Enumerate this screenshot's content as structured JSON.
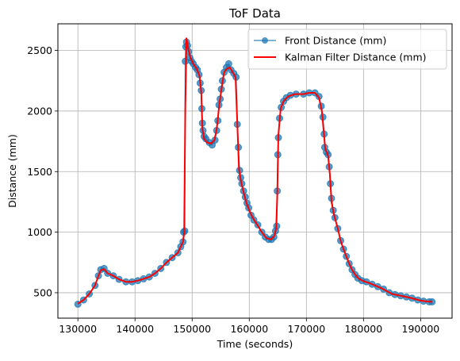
{
  "chart_data": {
    "type": "line",
    "title": "ToF Data",
    "xlabel": "Time (seconds)",
    "ylabel": "Distance (mm)",
    "xlim": [
      126500,
      195500
    ],
    "ylim": [
      290,
      2720
    ],
    "x_ticks": [
      130000,
      140000,
      150000,
      160000,
      170000,
      180000,
      190000
    ],
    "y_ticks": [
      500,
      1000,
      1500,
      2000,
      2500
    ],
    "grid": true,
    "legend_position": "top-right",
    "series": [
      {
        "name": "Front Distance (mm)",
        "style": "line-with-markers",
        "color": "#1f77b4",
        "points": [
          [
            130000,
            405
          ],
          [
            131000,
            440
          ],
          [
            132000,
            490
          ],
          [
            133000,
            560
          ],
          [
            133600,
            640
          ],
          [
            134000,
            690
          ],
          [
            134600,
            700
          ],
          [
            135200,
            660
          ],
          [
            136200,
            640
          ],
          [
            137200,
            610
          ],
          [
            138400,
            590
          ],
          [
            139500,
            590
          ],
          [
            140500,
            600
          ],
          [
            141500,
            615
          ],
          [
            142500,
            630
          ],
          [
            143500,
            660
          ],
          [
            144500,
            700
          ],
          [
            145500,
            750
          ],
          [
            146500,
            790
          ],
          [
            147500,
            830
          ],
          [
            148000,
            880
          ],
          [
            148400,
            920
          ],
          [
            148500,
            1000
          ],
          [
            148700,
            1010
          ],
          [
            148800,
            2410
          ],
          [
            148900,
            2530
          ],
          [
            149000,
            2570
          ],
          [
            149200,
            2540
          ],
          [
            149400,
            2490
          ],
          [
            149600,
            2440
          ],
          [
            149900,
            2410
          ],
          [
            150200,
            2390
          ],
          [
            150600,
            2360
          ],
          [
            150900,
            2340
          ],
          [
            151200,
            2300
          ],
          [
            151400,
            2230
          ],
          [
            151600,
            2170
          ],
          [
            151700,
            2020
          ],
          [
            151800,
            1900
          ],
          [
            151900,
            1840
          ],
          [
            152100,
            1790
          ],
          [
            152400,
            1770
          ],
          [
            153000,
            1740
          ],
          [
            153500,
            1720
          ],
          [
            154000,
            1760
          ],
          [
            154300,
            1840
          ],
          [
            154500,
            1920
          ],
          [
            154700,
            2050
          ],
          [
            154900,
            2100
          ],
          [
            155100,
            2180
          ],
          [
            155300,
            2250
          ],
          [
            155600,
            2320
          ],
          [
            156000,
            2360
          ],
          [
            156400,
            2390
          ],
          [
            156800,
            2340
          ],
          [
            157300,
            2310
          ],
          [
            157700,
            2280
          ],
          [
            157900,
            1890
          ],
          [
            158100,
            1700
          ],
          [
            158300,
            1510
          ],
          [
            158500,
            1450
          ],
          [
            158700,
            1400
          ],
          [
            159000,
            1340
          ],
          [
            159300,
            1290
          ],
          [
            159600,
            1240
          ],
          [
            159900,
            1200
          ],
          [
            160300,
            1140
          ],
          [
            160800,
            1100
          ],
          [
            161500,
            1060
          ],
          [
            162200,
            1000
          ],
          [
            162800,
            960
          ],
          [
            163400,
            940
          ],
          [
            163900,
            940
          ],
          [
            164300,
            960
          ],
          [
            164600,
            1010
          ],
          [
            164800,
            1050
          ],
          [
            164900,
            1340
          ],
          [
            165000,
            1640
          ],
          [
            165100,
            1780
          ],
          [
            165300,
            1940
          ],
          [
            165600,
            2030
          ],
          [
            166000,
            2080
          ],
          [
            166500,
            2110
          ],
          [
            167200,
            2130
          ],
          [
            168200,
            2140
          ],
          [
            169500,
            2140
          ],
          [
            170500,
            2150
          ],
          [
            171500,
            2150
          ],
          [
            172200,
            2120
          ],
          [
            172600,
            2040
          ],
          [
            172900,
            1950
          ],
          [
            173100,
            1810
          ],
          [
            173200,
            1700
          ],
          [
            173500,
            1660
          ],
          [
            173800,
            1640
          ],
          [
            174000,
            1540
          ],
          [
            174200,
            1400
          ],
          [
            174400,
            1280
          ],
          [
            174700,
            1180
          ],
          [
            175000,
            1120
          ],
          [
            175500,
            1030
          ],
          [
            176000,
            930
          ],
          [
            176500,
            860
          ],
          [
            177000,
            800
          ],
          [
            177500,
            740
          ],
          [
            178000,
            690
          ],
          [
            178500,
            650
          ],
          [
            179000,
            620
          ],
          [
            179700,
            600
          ],
          [
            180500,
            590
          ],
          [
            181500,
            570
          ],
          [
            182500,
            550
          ],
          [
            183500,
            530
          ],
          [
            184500,
            500
          ],
          [
            185500,
            485
          ],
          [
            186500,
            475
          ],
          [
            187500,
            465
          ],
          [
            188500,
            455
          ],
          [
            189500,
            440
          ],
          [
            190500,
            430
          ],
          [
            191500,
            425
          ],
          [
            192000,
            425
          ]
        ]
      },
      {
        "name": "Kalman Filter Distance (mm)",
        "style": "line",
        "color": "#ff0000",
        "points": [
          [
            130000,
            410
          ],
          [
            131000,
            440
          ],
          [
            132000,
            490
          ],
          [
            133000,
            560
          ],
          [
            133600,
            640
          ],
          [
            134000,
            685
          ],
          [
            134600,
            695
          ],
          [
            135200,
            660
          ],
          [
            136200,
            640
          ],
          [
            137200,
            610
          ],
          [
            138400,
            590
          ],
          [
            139500,
            590
          ],
          [
            140500,
            600
          ],
          [
            141500,
            615
          ],
          [
            142500,
            630
          ],
          [
            143500,
            660
          ],
          [
            144500,
            700
          ],
          [
            145500,
            750
          ],
          [
            146500,
            790
          ],
          [
            147500,
            830
          ],
          [
            148000,
            880
          ],
          [
            148400,
            920
          ],
          [
            148600,
            990
          ],
          [
            148800,
            2000
          ],
          [
            149000,
            2600
          ],
          [
            149300,
            2520
          ],
          [
            149700,
            2440
          ],
          [
            150200,
            2390
          ],
          [
            150800,
            2350
          ],
          [
            151300,
            2290
          ],
          [
            151600,
            2150
          ],
          [
            151800,
            1850
          ],
          [
            152100,
            1770
          ],
          [
            152600,
            1740
          ],
          [
            153300,
            1730
          ],
          [
            153900,
            1760
          ],
          [
            154300,
            1850
          ],
          [
            154800,
            2070
          ],
          [
            155200,
            2200
          ],
          [
            155600,
            2320
          ],
          [
            156100,
            2350
          ],
          [
            156600,
            2360
          ],
          [
            157100,
            2320
          ],
          [
            157600,
            2280
          ],
          [
            157900,
            1900
          ],
          [
            158200,
            1520
          ],
          [
            158500,
            1430
          ],
          [
            159000,
            1330
          ],
          [
            159500,
            1240
          ],
          [
            160000,
            1180
          ],
          [
            160600,
            1120
          ],
          [
            161400,
            1060
          ],
          [
            162200,
            1000
          ],
          [
            163000,
            950
          ],
          [
            163800,
            940
          ],
          [
            164400,
            970
          ],
          [
            164700,
            1030
          ],
          [
            164900,
            1300
          ],
          [
            165100,
            1800
          ],
          [
            165500,
            2020
          ],
          [
            166000,
            2080
          ],
          [
            166800,
            2120
          ],
          [
            168000,
            2140
          ],
          [
            169500,
            2140
          ],
          [
            170500,
            2150
          ],
          [
            171500,
            2150
          ],
          [
            172200,
            2110
          ],
          [
            172700,
            2000
          ],
          [
            173000,
            1850
          ],
          [
            173300,
            1690
          ],
          [
            173800,
            1630
          ],
          [
            174100,
            1480
          ],
          [
            174400,
            1250
          ],
          [
            174800,
            1150
          ],
          [
            175500,
            1030
          ],
          [
            176000,
            930
          ],
          [
            176500,
            860
          ],
          [
            177000,
            800
          ],
          [
            177500,
            740
          ],
          [
            178000,
            690
          ],
          [
            178600,
            645
          ],
          [
            179200,
            615
          ],
          [
            180000,
            595
          ],
          [
            181000,
            580
          ],
          [
            182000,
            560
          ],
          [
            183000,
            540
          ],
          [
            184000,
            515
          ],
          [
            185000,
            490
          ],
          [
            186000,
            480
          ],
          [
            187000,
            470
          ],
          [
            188000,
            460
          ],
          [
            189000,
            448
          ],
          [
            190000,
            435
          ],
          [
            191000,
            428
          ],
          [
            192000,
            425
          ]
        ]
      }
    ]
  }
}
